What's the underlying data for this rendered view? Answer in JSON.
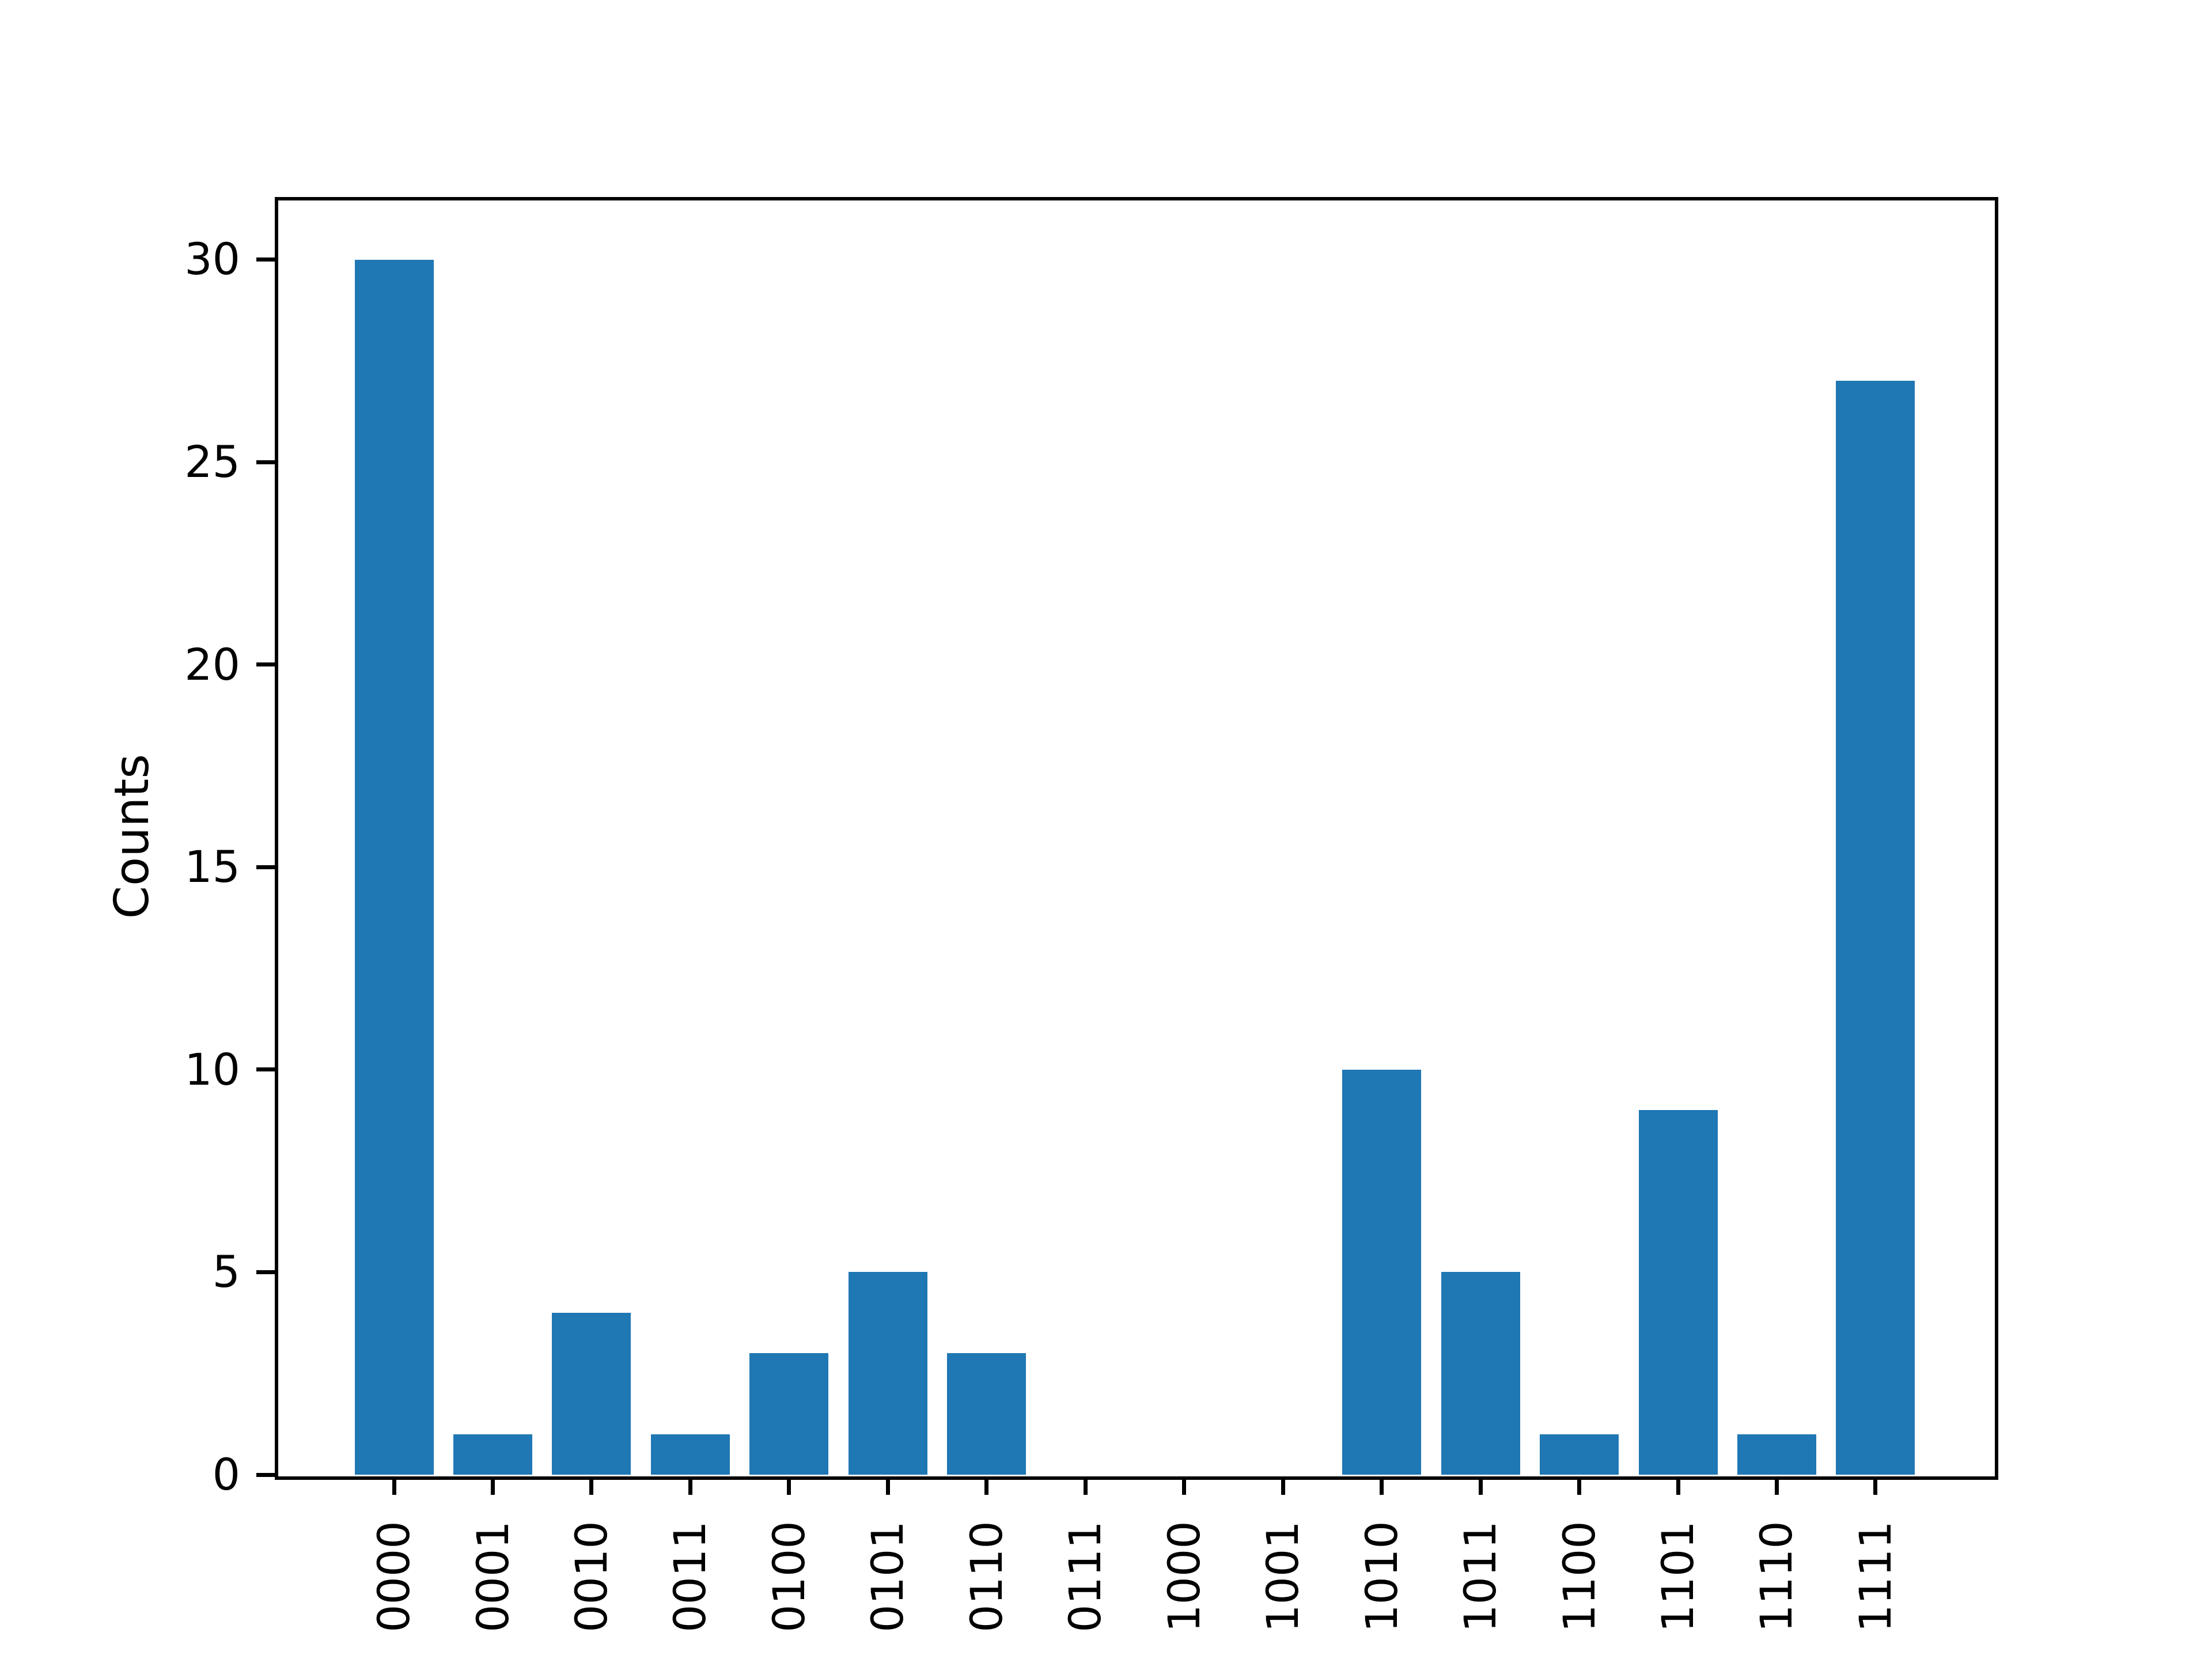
{
  "chart_data": {
    "type": "bar",
    "title": "",
    "xlabel": "",
    "ylabel": "Counts",
    "categories": [
      "0000",
      "0001",
      "0010",
      "0011",
      "0100",
      "0101",
      "0110",
      "0111",
      "1000",
      "1001",
      "1010",
      "1011",
      "1100",
      "1101",
      "1110",
      "1111"
    ],
    "values": [
      30,
      1,
      4,
      1,
      3,
      5,
      3,
      0,
      0,
      0,
      10,
      5,
      1,
      9,
      1,
      27
    ],
    "yticks": [
      0,
      5,
      10,
      15,
      20,
      25,
      30
    ],
    "ylim": [
      0,
      31.5
    ],
    "x_tick_rotation": 90,
    "grid": false,
    "legend": null,
    "bar_color": "#1f77b4",
    "axis_color": "#000000",
    "background_color": "#ffffff"
  }
}
